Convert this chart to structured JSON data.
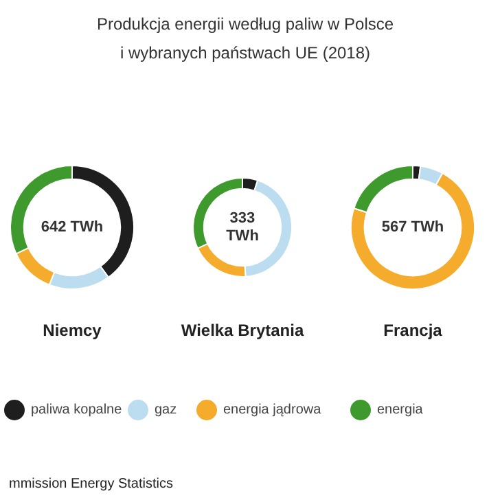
{
  "chart_data": [
    {
      "type": "donut",
      "title": "Produkcja energii według paliw w Polsce\ni wybranych państwach UE (2018)",
      "xlabel": "Niemcy",
      "categories": [
        "paliwa kopalne",
        "gaz",
        "energia jądrowa",
        "energia"
      ],
      "values": [
        40,
        16,
        12,
        32
      ],
      "colors": [
        "#1e1e1e",
        "#bcdcf0",
        "#f5ac2c",
        "#3e9a2c"
      ],
      "annotations": [
        "642 TWh",
        "mmission Energy Statistics"
      ],
      "legend": "bottom"
    },
    {
      "type": "donut",
      "xlabel": "Wielka Brytania",
      "categories": [
        null,
        null,
        null,
        null
      ],
      "values": [
        5,
        44,
        19,
        32
      ],
      "colors": [
        "#1e1e1e",
        "#bcdcf0",
        "#f5ac2c",
        "#3e9a2c"
      ],
      "annotations": [
        "333\nTWh"
      ]
    },
    {
      "type": "donut",
      "xlabel": "Francja",
      "categories": [
        null,
        null,
        null,
        null
      ],
      "values": [
        2,
        6,
        72,
        20
      ],
      "colors": [
        "#1e1e1e",
        "#bcdcf0",
        "#f5ac2c",
        "#3e9a2c"
      ],
      "annotations": [
        "567 TWh"
      ]
    }
  ]
}
